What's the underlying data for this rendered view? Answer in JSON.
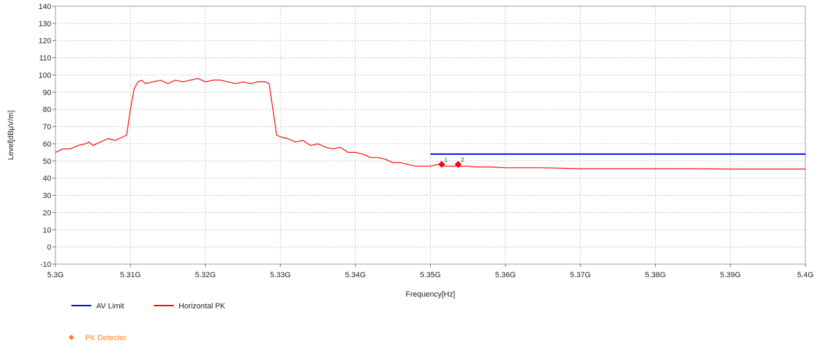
{
  "chart_data": {
    "type": "line",
    "xlabel": "Frequency[Hz]",
    "ylabel": "Level[dBµV/m]",
    "xlim": [
      5.3,
      5.4
    ],
    "ylim": [
      -10,
      140
    ],
    "grid": true,
    "x_ticks": [
      {
        "value": 5.3,
        "label": "5.3G"
      },
      {
        "value": 5.31,
        "label": "5.31G"
      },
      {
        "value": 5.32,
        "label": "5.32G"
      },
      {
        "value": 5.33,
        "label": "5.33G"
      },
      {
        "value": 5.34,
        "label": "5.34G"
      },
      {
        "value": 5.35,
        "label": "5.35G"
      },
      {
        "value": 5.36,
        "label": "5.36G"
      },
      {
        "value": 5.37,
        "label": "5.37G"
      },
      {
        "value": 5.38,
        "label": "5.38G"
      },
      {
        "value": 5.39,
        "label": "5.39G"
      },
      {
        "value": 5.4,
        "label": "5.4G"
      }
    ],
    "y_ticks": [
      -10,
      0,
      10,
      20,
      30,
      40,
      50,
      60,
      70,
      80,
      90,
      100,
      110,
      120,
      130,
      140
    ],
    "series": [
      {
        "name": "AV Limit",
        "color": "#0000ff",
        "x": [
          5.35,
          5.4
        ],
        "y": [
          54,
          54
        ]
      },
      {
        "name": "Horizontal PK",
        "color": "#ff0000",
        "x": [
          5.3,
          5.301,
          5.302,
          5.303,
          5.304,
          5.3045,
          5.305,
          5.306,
          5.307,
          5.308,
          5.309,
          5.3095,
          5.31,
          5.3105,
          5.311,
          5.3115,
          5.312,
          5.313,
          5.314,
          5.315,
          5.316,
          5.317,
          5.318,
          5.319,
          5.32,
          5.321,
          5.322,
          5.323,
          5.324,
          5.325,
          5.326,
          5.327,
          5.328,
          5.3285,
          5.329,
          5.3295,
          5.33,
          5.331,
          5.332,
          5.333,
          5.334,
          5.335,
          5.336,
          5.337,
          5.338,
          5.339,
          5.34,
          5.341,
          5.342,
          5.343,
          5.344,
          5.345,
          5.346,
          5.347,
          5.348,
          5.349,
          5.35,
          5.351,
          5.352,
          5.353,
          5.354,
          5.355,
          5.356,
          5.358,
          5.36,
          5.365,
          5.37,
          5.375,
          5.38,
          5.385,
          5.39,
          5.395,
          5.4
        ],
        "y": [
          55,
          57,
          57,
          59,
          60,
          61,
          59,
          61,
          63,
          62,
          64,
          65,
          80,
          92,
          96,
          97,
          95,
          96,
          97,
          95,
          97,
          96,
          97,
          98,
          96,
          97,
          97,
          96,
          95,
          96,
          95,
          96,
          96,
          95,
          80,
          65,
          64,
          63,
          61,
          62,
          59,
          60,
          58,
          57,
          58,
          55,
          55,
          54,
          52,
          52,
          51,
          49,
          49,
          48,
          47,
          47,
          47,
          48,
          47,
          47,
          47,
          47,
          46.5,
          46.5,
          46,
          46,
          45.5,
          45.5,
          45.5,
          45.5,
          45.3,
          45.3,
          45.3
        ]
      }
    ],
    "markers": [
      {
        "label": "1",
        "x": 5.3515,
        "y": 48
      },
      {
        "label": "2",
        "x": 5.3537,
        "y": 48
      }
    ],
    "legend": [
      {
        "name": "AV Limit",
        "color": "#0000ff",
        "symbol": "line"
      },
      {
        "name": "Horizontal PK",
        "color": "#ff0000",
        "symbol": "line"
      },
      {
        "name": "PK Detector",
        "color": "#ff7f27",
        "symbol": "diamond"
      }
    ],
    "legend_placement": "bottom-left"
  }
}
